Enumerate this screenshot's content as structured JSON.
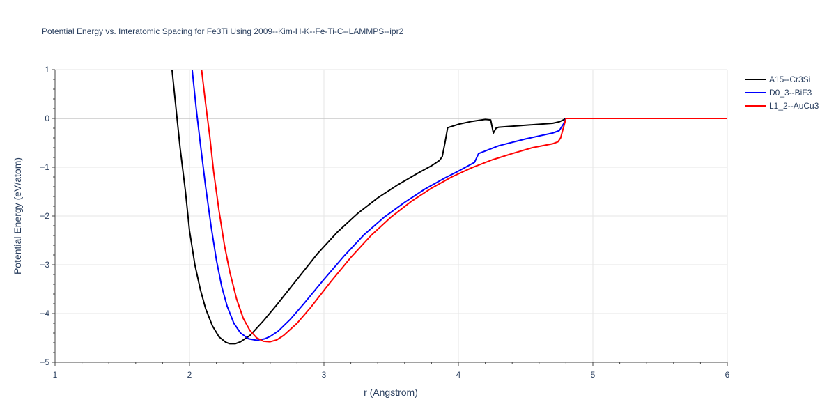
{
  "chart_data": {
    "type": "line",
    "title": "Potential Energy vs. Interatomic Spacing for Fe3Ti Using 2009--Kim-H-K--Fe-Ti-C--LAMMPS--ipr2",
    "xlabel": "r (Angstrom)",
    "ylabel": "Potential Energy (eV/atom)",
    "xlim": [
      1,
      6
    ],
    "ylim": [
      -5,
      1
    ],
    "x_ticks": [
      1,
      2,
      3,
      4,
      5,
      6
    ],
    "x_tick_labels": [
      "1",
      "2",
      "3",
      "4",
      "5",
      "6"
    ],
    "y_ticks": [
      1,
      0,
      -1,
      -2,
      -3,
      -4,
      -5
    ],
    "y_tick_labels": [
      "1",
      "0",
      "−1",
      "−2",
      "−3",
      "−4",
      "−5"
    ],
    "grid": true,
    "legend_position": "top-right",
    "series": [
      {
        "name": "A15--Cr3Si",
        "color": "#000000",
        "x": [
          1.87,
          1.9,
          1.93,
          1.97,
          2.0,
          2.04,
          2.08,
          2.12,
          2.17,
          2.22,
          2.27,
          2.3,
          2.34,
          2.38,
          2.45,
          2.55,
          2.65,
          2.8,
          2.95,
          3.1,
          3.25,
          3.4,
          3.55,
          3.7,
          3.8,
          3.86,
          3.88,
          3.9,
          3.92,
          4.0,
          4.1,
          4.2,
          4.24,
          4.26,
          4.28,
          4.3,
          4.5,
          4.7,
          4.75,
          4.78,
          4.8,
          5.0,
          6.0
        ],
        "y": [
          1.0,
          0.2,
          -0.6,
          -1.5,
          -2.3,
          -3.0,
          -3.5,
          -3.9,
          -4.25,
          -4.48,
          -4.59,
          -4.62,
          -4.62,
          -4.58,
          -4.45,
          -4.15,
          -3.82,
          -3.3,
          -2.78,
          -2.33,
          -1.95,
          -1.63,
          -1.36,
          -1.12,
          -0.97,
          -0.86,
          -0.78,
          -0.5,
          -0.19,
          -0.12,
          -0.06,
          -0.02,
          -0.03,
          -0.3,
          -0.2,
          -0.18,
          -0.14,
          -0.1,
          -0.07,
          -0.03,
          0.0,
          0.0,
          0.0
        ]
      },
      {
        "name": "D0_3--BiF3",
        "color": "#0000ff",
        "x": [
          2.02,
          2.05,
          2.08,
          2.12,
          2.16,
          2.2,
          2.24,
          2.28,
          2.33,
          2.38,
          2.44,
          2.5,
          2.56,
          2.6,
          2.66,
          2.75,
          2.85,
          3.0,
          3.15,
          3.3,
          3.45,
          3.6,
          3.75,
          3.9,
          4.0,
          4.12,
          4.15,
          4.3,
          4.5,
          4.7,
          4.75,
          4.78,
          4.8,
          5.0,
          6.0
        ],
        "y": [
          1.0,
          0.2,
          -0.5,
          -1.4,
          -2.2,
          -2.9,
          -3.45,
          -3.85,
          -4.2,
          -4.4,
          -4.52,
          -4.55,
          -4.52,
          -4.47,
          -4.36,
          -4.12,
          -3.8,
          -3.3,
          -2.82,
          -2.38,
          -2.02,
          -1.72,
          -1.45,
          -1.22,
          -1.08,
          -0.9,
          -0.72,
          -0.56,
          -0.42,
          -0.3,
          -0.25,
          -0.12,
          0.0,
          0.0,
          0.0
        ]
      },
      {
        "name": "L1_2--AuCu3",
        "color": "#ff0000",
        "x": [
          2.09,
          2.12,
          2.15,
          2.18,
          2.22,
          2.26,
          2.3,
          2.35,
          2.4,
          2.45,
          2.5,
          2.55,
          2.6,
          2.65,
          2.7,
          2.8,
          2.9,
          3.05,
          3.2,
          3.35,
          3.5,
          3.65,
          3.8,
          3.95,
          4.1,
          4.25,
          4.4,
          4.55,
          4.7,
          4.74,
          4.76,
          4.78,
          4.8,
          5.0,
          6.0
        ],
        "y": [
          1.0,
          0.3,
          -0.35,
          -1.1,
          -1.9,
          -2.6,
          -3.15,
          -3.7,
          -4.1,
          -4.35,
          -4.5,
          -4.57,
          -4.58,
          -4.54,
          -4.45,
          -4.2,
          -3.88,
          -3.35,
          -2.85,
          -2.4,
          -2.02,
          -1.7,
          -1.43,
          -1.2,
          -1.01,
          -0.85,
          -0.72,
          -0.6,
          -0.52,
          -0.48,
          -0.4,
          -0.2,
          0.0,
          0.0,
          0.0
        ]
      }
    ]
  }
}
